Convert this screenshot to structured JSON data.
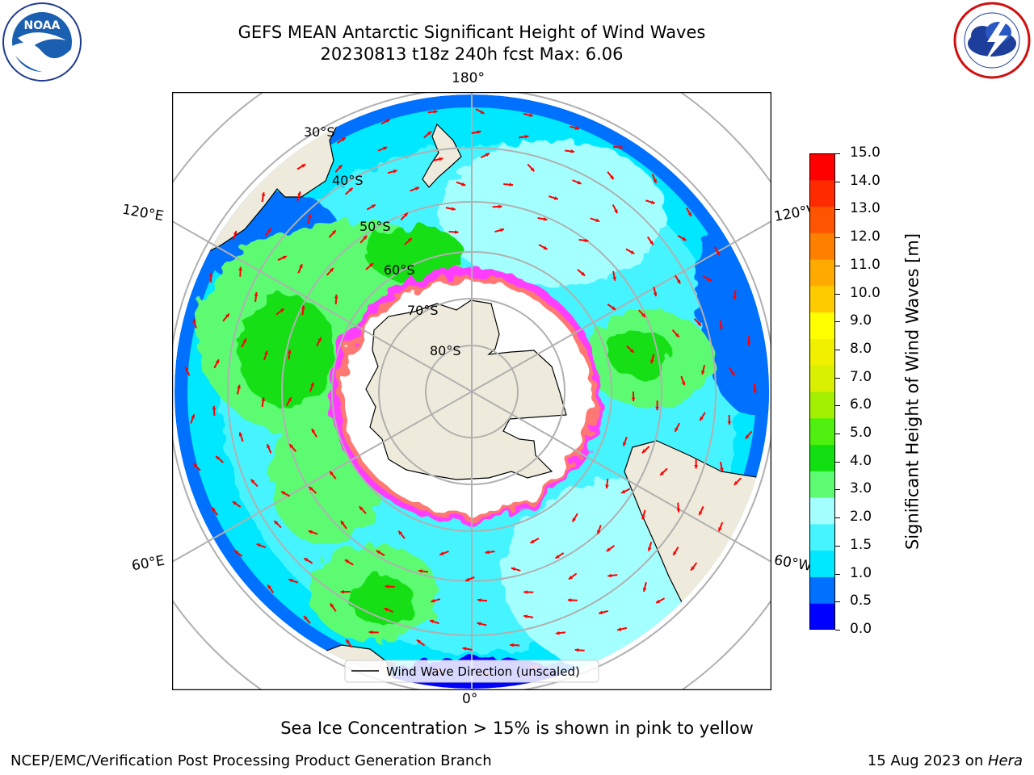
{
  "header": {
    "title_line1": "GEFS MEAN Antarctic Significant Height of Wind Waves",
    "title_line2": "20230813 t18z 240h fcst   Max: 6.06",
    "left_logo": {
      "icon": "noaa-logo-icon",
      "text": "NOAA",
      "ring_text": "NATIONAL OCEANIC AND ATMOSPHERIC ADMINISTRATION · U.S. DEPARTMENT OF COMMERCE"
    },
    "right_logo": {
      "icon": "nws-logo-icon",
      "ring_text": "NATIONAL WEATHER SERVICE"
    }
  },
  "map": {
    "projection": "south-polar-stereographic",
    "longitude_labels": {
      "top": "180°",
      "bottom": "0°",
      "left_upper": "120°E",
      "left_lower": "60°E",
      "right_upper": "120°W",
      "right_lower": "60°W"
    },
    "latitude_labels": [
      "30°S",
      "40°S",
      "50°S",
      "60°S",
      "70°S",
      "80°S"
    ],
    "legend_label": "Wind Wave Direction (unscaled)",
    "colors": {
      "land": "#efebdc",
      "ice_free": "#ffffff",
      "sea_ice": "#ff3cff",
      "arrows": "#ff0000",
      "grid": "#b0b0b0"
    }
  },
  "colorbar": {
    "label": "Significant Height of Wind Waves [m]",
    "ticks": [
      "15.0",
      "14.0",
      "13.0",
      "12.0",
      "11.0",
      "10.0",
      "9.0",
      "8.0",
      "7.0",
      "6.0",
      "5.0",
      "4.0",
      "3.0",
      "2.0",
      "1.5",
      "1.0",
      "0.5",
      "0.0"
    ],
    "colors_bottom_to_top": [
      "#0000ff",
      "#0070ff",
      "#00e8ff",
      "#44f4ff",
      "#a4ffff",
      "#5cfb72",
      "#12df12",
      "#4ff00f",
      "#a3f000",
      "#d9f000",
      "#f0f000",
      "#ffff00",
      "#ffcc00",
      "#ffaa00",
      "#ff8000",
      "#ff5500",
      "#ff2a00",
      "#ff0000"
    ]
  },
  "footer": {
    "subtitle": "Sea Ice Concentration > 15% is shown in pink to yellow",
    "left": "NCEP/EMC/Verification Post Processing Product Generation Branch",
    "right_date": "15 Aug 2023 on ",
    "right_machine": "Hera"
  }
}
